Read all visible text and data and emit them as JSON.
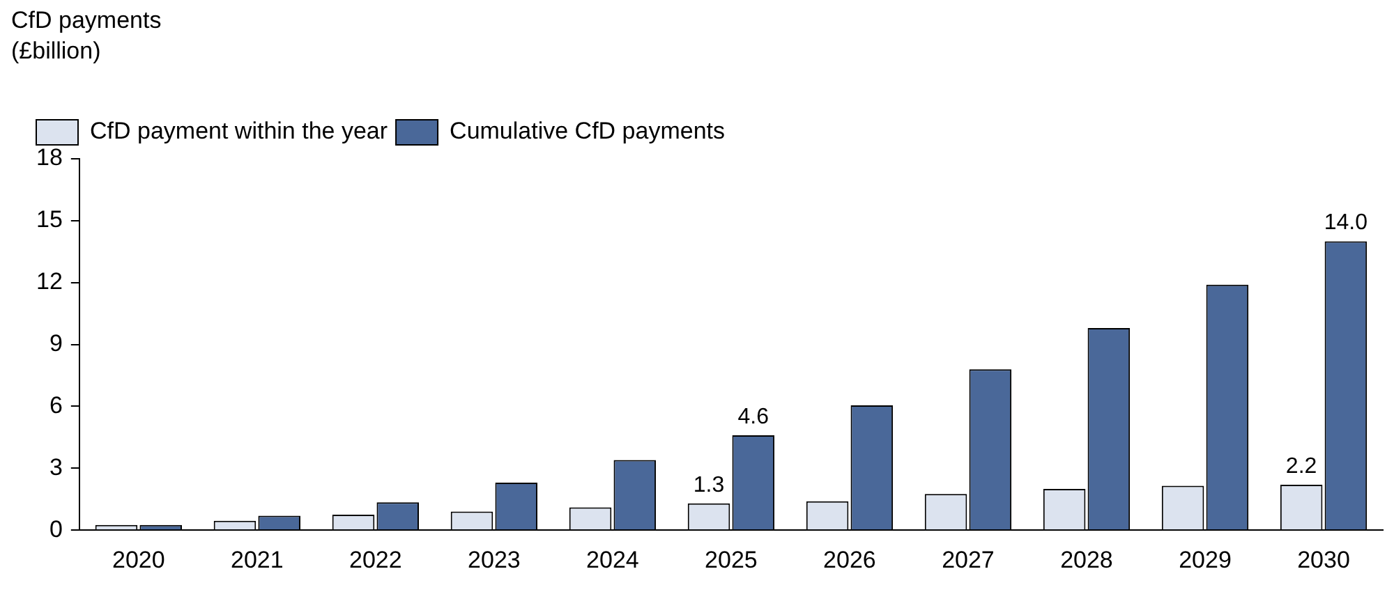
{
  "chart_data": {
    "type": "bar",
    "ylabel": "CfD payments (£billion)",
    "categories": [
      "2020",
      "2021",
      "2022",
      "2023",
      "2024",
      "2025",
      "2026",
      "2027",
      "2028",
      "2029",
      "2030"
    ],
    "series": [
      {
        "name": "CfD payment within the year",
        "color": "#dce3ef",
        "values": [
          0.25,
          0.45,
          0.75,
          0.9,
          1.1,
          1.3,
          1.4,
          1.75,
          2.0,
          2.15,
          2.2
        ],
        "value_labels": [
          null,
          null,
          null,
          null,
          null,
          "1.3",
          null,
          null,
          null,
          null,
          "2.2"
        ]
      },
      {
        "name": "Cumulative CfD payments",
        "color": "#4a6899",
        "values": [
          0.25,
          0.7,
          1.35,
          2.3,
          3.4,
          4.6,
          6.05,
          7.8,
          9.8,
          11.9,
          14.0
        ],
        "value_labels": [
          null,
          null,
          null,
          null,
          null,
          "4.6",
          null,
          null,
          null,
          null,
          "14.0"
        ]
      }
    ],
    "ylim": [
      0,
      18
    ],
    "yticks": [
      0,
      3,
      6,
      9,
      12,
      15,
      18
    ],
    "grid": false,
    "legend": "top left"
  }
}
